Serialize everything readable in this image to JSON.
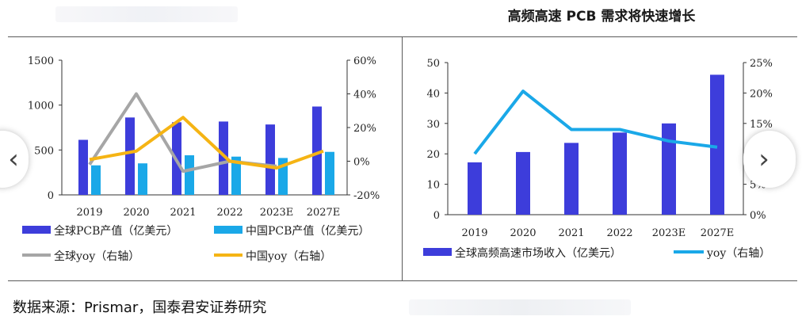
{
  "right_title": "高频高速 PCB 需求将快速增长",
  "source_text": "数据来源：Prismar，国泰君安证券研究",
  "nav": {
    "prev_glyph": "‹",
    "next_glyph": "›"
  },
  "colors": {
    "blue": "#3d3ddb",
    "cyan": "#1aa8e8",
    "gray": "#a6a6a6",
    "gold": "#f5b414",
    "axis": "#333333"
  },
  "chart_data": [
    {
      "type": "bar",
      "categories": [
        "2019",
        "2020",
        "2021",
        "2022",
        "2023E",
        "2027E"
      ],
      "series": [
        {
          "name": "全球PCB产值（亿美元）",
          "type": "bar",
          "axis": "left",
          "values": [
            613,
            862,
            809,
            817,
            784,
            984
          ]
        },
        {
          "name": "中国PCB产值（亿美元）",
          "type": "bar",
          "axis": "left",
          "values": [
            329,
            351,
            441,
            426,
            411,
            479
          ]
        },
        {
          "name": "全球yoy（右轴）",
          "type": "line",
          "axis": "right",
          "values": [
            -0.02,
            0.4,
            -0.06,
            0.0,
            -0.03,
            null
          ]
        },
        {
          "name": "中国yoy（右轴）",
          "type": "line",
          "axis": "right",
          "values": [
            0.01,
            0.06,
            0.26,
            0.0,
            -0.04,
            0.06
          ]
        }
      ],
      "left_ticks": [
        "0",
        "500",
        "1000",
        "1500"
      ],
      "right_ticks": [
        "-20%",
        "0%",
        "20%",
        "40%",
        "60%"
      ],
      "ylim_left": [
        0,
        1500
      ],
      "ylim_right": [
        -0.2,
        0.6
      ]
    },
    {
      "type": "bar",
      "categories": [
        "2019",
        "2020",
        "2021",
        "2022",
        "2023E",
        "2027E"
      ],
      "series": [
        {
          "name": "全球高频高速市场收入（亿美元）",
          "type": "bar",
          "axis": "left",
          "values": [
            17.2,
            20.6,
            23.6,
            27.0,
            30.0,
            46.0
          ]
        },
        {
          "name": "yoy（右轴）",
          "type": "line",
          "axis": "right",
          "values": [
            0.1,
            0.203,
            0.14,
            0.14,
            0.121,
            0.111
          ]
        }
      ],
      "title": "高频高速 PCB 需求将快速增长",
      "left_ticks": [
        "0",
        "10",
        "20",
        "30",
        "40",
        "50"
      ],
      "right_ticks": [
        "0%",
        "5%",
        "10%",
        "15%",
        "20%",
        "25%"
      ],
      "ylim_left": [
        0,
        50
      ],
      "ylim_right": [
        0,
        0.25
      ]
    }
  ]
}
